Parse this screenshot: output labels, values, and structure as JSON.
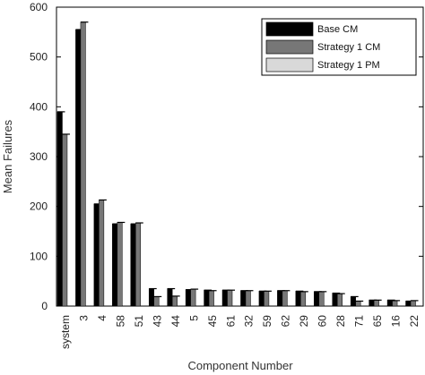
{
  "chart_data": {
    "type": "bar",
    "title": "",
    "xlabel": "Component Number",
    "ylabel": "Mean Failures",
    "ylim": [
      0,
      600
    ],
    "yticks": [
      0,
      100,
      200,
      300,
      400,
      500,
      600
    ],
    "categories": [
      "system",
      "3",
      "4",
      "58",
      "51",
      "43",
      "44",
      "5",
      "45",
      "61",
      "32",
      "59",
      "62",
      "29",
      "60",
      "28",
      "71",
      "65",
      "16",
      "22"
    ],
    "series": [
      {
        "name": "Base CM",
        "color": "#000000",
        "values": [
          390,
          555,
          205,
          165,
          165,
          35,
          35,
          33,
          32,
          32,
          31,
          30,
          31,
          30,
          29,
          26,
          19,
          12,
          12,
          10
        ]
      },
      {
        "name": "Strategy 1 CM",
        "color": "#777777",
        "values": [
          345,
          570,
          213,
          168,
          167,
          19,
          20,
          34,
          31,
          32,
          31,
          30,
          31,
          29,
          29,
          25,
          10,
          12,
          11,
          11
        ]
      },
      {
        "name": "Strategy 1 PM",
        "color": "#d9d9d9",
        "values": [
          0,
          0,
          0,
          0,
          0,
          0,
          0,
          0,
          0,
          0,
          0,
          0,
          0,
          0,
          0,
          0,
          0,
          0,
          0,
          0
        ]
      }
    ],
    "legend_position": "top-right",
    "grid": false
  }
}
